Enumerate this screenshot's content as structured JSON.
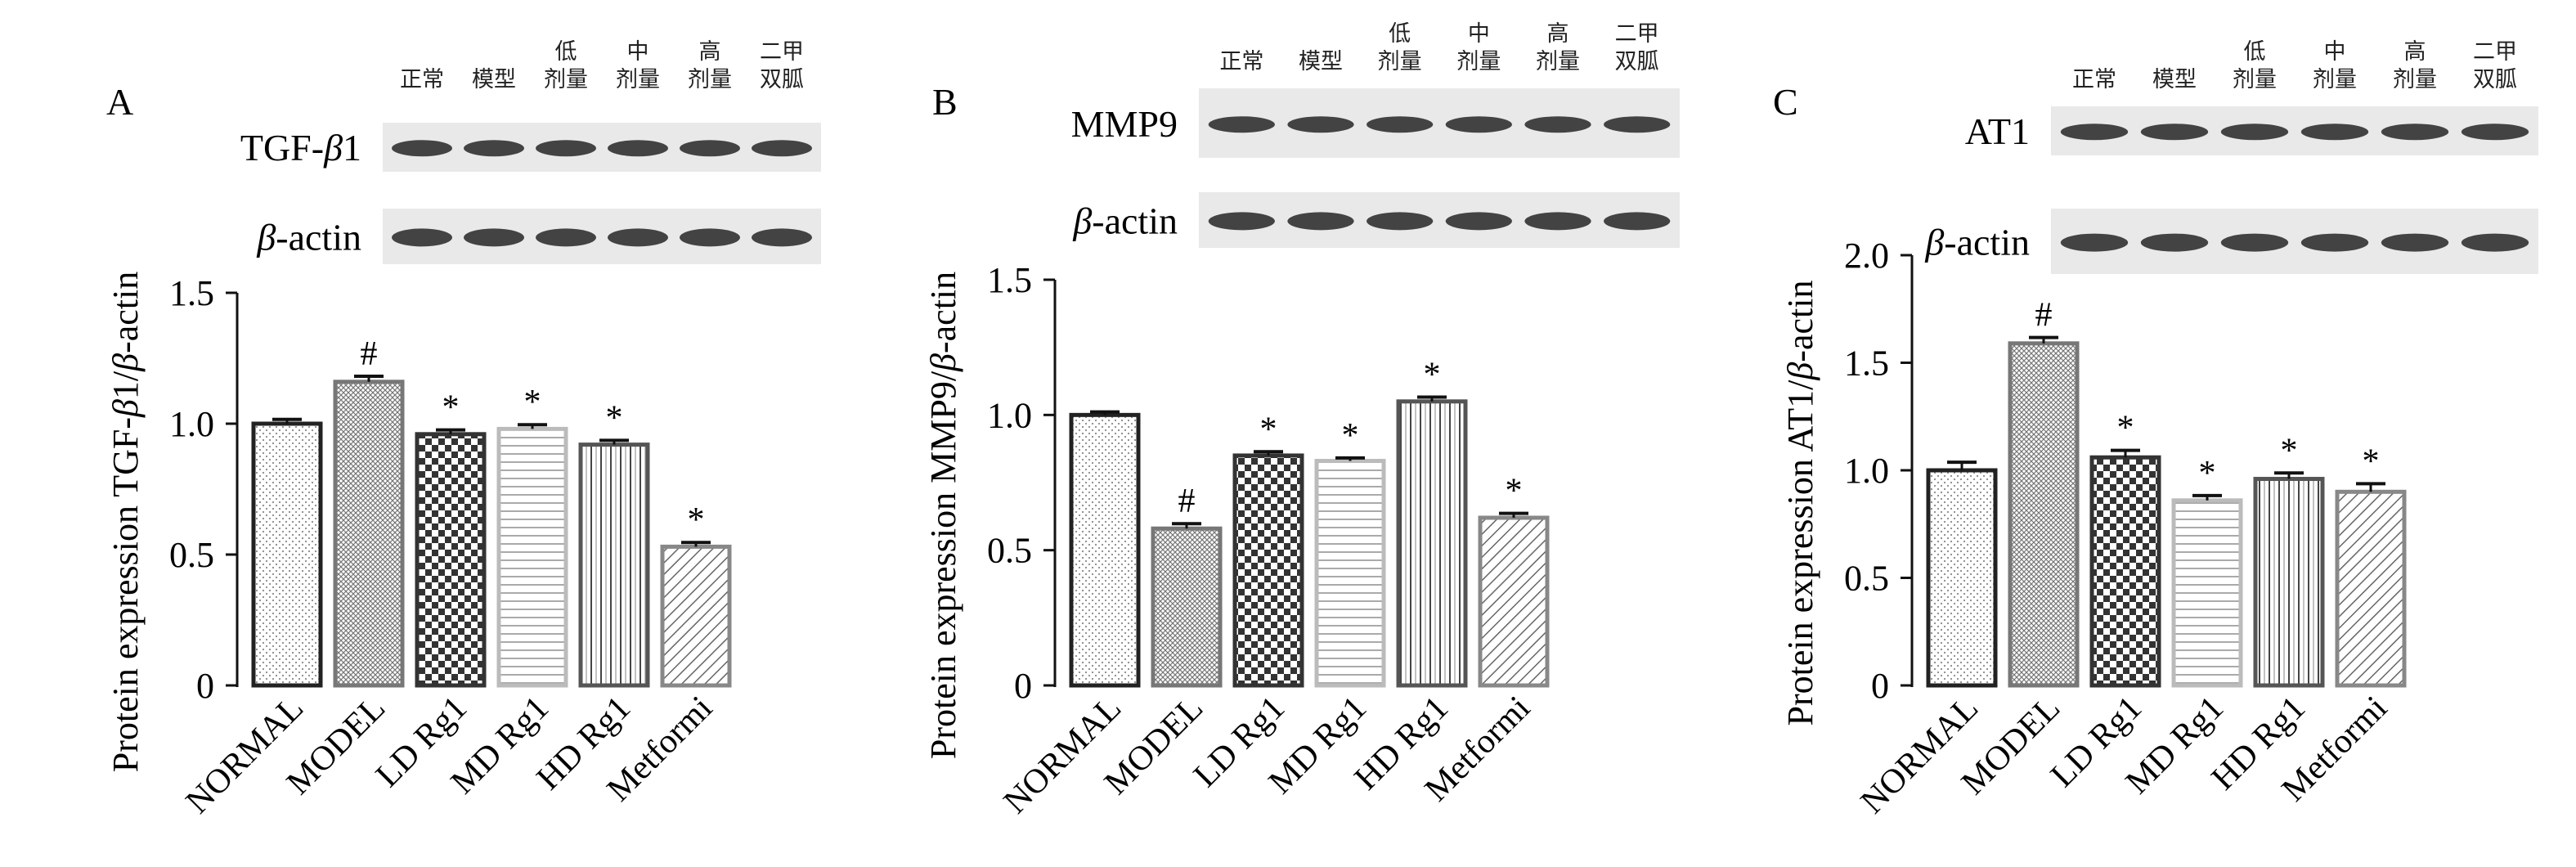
{
  "lane_headers": [
    "正常",
    "模型",
    "低\n剂量",
    "中\n剂量",
    "高\n剂量",
    "二甲\n双胍"
  ],
  "panels": [
    {
      "letter": "A",
      "blot_labels": [
        {
          "text_parts": [
            {
              "t": "TGF-",
              "i": false
            },
            {
              "t": "β",
              "i": true
            },
            {
              "t": "1",
              "i": false
            }
          ]
        },
        {
          "text_parts": [
            {
              "t": "β",
              "i": true
            },
            {
              "t": "-actin",
              "i": false
            }
          ]
        }
      ],
      "ylabel_parts": [
        {
          "t": "Protein expression TGF-",
          "i": false
        },
        {
          "t": "β",
          "i": true
        },
        {
          "t": "1/",
          "i": false
        },
        {
          "t": "β",
          "i": true
        },
        {
          "t": "-actin",
          "i": false
        }
      ]
    },
    {
      "letter": "B",
      "blot_labels": [
        {
          "text_parts": [
            {
              "t": "MMP9",
              "i": false
            }
          ]
        },
        {
          "text_parts": [
            {
              "t": "β",
              "i": true
            },
            {
              "t": "-actin",
              "i": false
            }
          ]
        }
      ],
      "ylabel_parts": [
        {
          "t": "Protein expression MMP9/",
          "i": false
        },
        {
          "t": "β",
          "i": true
        },
        {
          "t": "-actin",
          "i": false
        }
      ]
    },
    {
      "letter": "C",
      "blot_labels": [
        {
          "text_parts": [
            {
              "t": "AT1",
              "i": false
            }
          ]
        },
        {
          "text_parts": [
            {
              "t": "β",
              "i": true
            },
            {
              "t": "-actin",
              "i": false
            }
          ]
        }
      ],
      "ylabel_parts": [
        {
          "t": "Protein expression AT1/",
          "i": false
        },
        {
          "t": "β",
          "i": true
        },
        {
          "t": "-actin",
          "i": false
        }
      ]
    }
  ],
  "chart_data": [
    {
      "type": "bar",
      "panel": "A",
      "categories": [
        "NORMAL",
        "MODEL",
        "LD Rg1",
        "MD Rg1",
        "HD Rg1",
        "Metformi"
      ],
      "values": [
        1.0,
        1.16,
        0.96,
        0.98,
        0.92,
        0.53
      ],
      "errors": [
        0.01,
        0.015,
        0.01,
        0.01,
        0.01,
        0.01
      ],
      "markers": [
        "",
        "#",
        "*",
        "*",
        "*",
        "*"
      ],
      "ylabel": "Protein expression TGF-β1/β-actin",
      "ylim": [
        0,
        1.5
      ],
      "yticks": [
        "0",
        "0.5",
        "1.0",
        "1.5"
      ],
      "grid": false
    },
    {
      "type": "bar",
      "panel": "B",
      "categories": [
        "NORMAL",
        "MODEL",
        "LD Rg1",
        "MD Rg1",
        "HD Rg1",
        "Metformi"
      ],
      "values": [
        1.0,
        0.58,
        0.85,
        0.83,
        1.05,
        0.62
      ],
      "errors": [
        0.005,
        0.012,
        0.008,
        0.005,
        0.01,
        0.01
      ],
      "markers": [
        "",
        "#",
        "*",
        "*",
        "*",
        "*"
      ],
      "ylabel": "Protein expression MMP9/β-actin",
      "ylim": [
        0,
        1.5
      ],
      "yticks": [
        "0",
        "0.5",
        "1.0",
        "1.5"
      ],
      "grid": false
    },
    {
      "type": "bar",
      "panel": "C",
      "categories": [
        "NORMAL",
        "MODEL",
        "LD Rg1",
        "MD Rg1",
        "HD Rg1",
        "Metformi"
      ],
      "values": [
        1.0,
        1.59,
        1.06,
        0.86,
        0.96,
        0.9
      ],
      "errors": [
        0.03,
        0.02,
        0.025,
        0.015,
        0.02,
        0.03
      ],
      "markers": [
        "",
        "#",
        "*",
        "*",
        "*",
        "*"
      ],
      "ylabel": "Protein expression AT1/β-actin",
      "ylim": [
        0,
        2.0
      ],
      "yticks": [
        "0",
        "0.5",
        "1.0",
        "1.5",
        "2.0"
      ],
      "grid": false
    }
  ]
}
